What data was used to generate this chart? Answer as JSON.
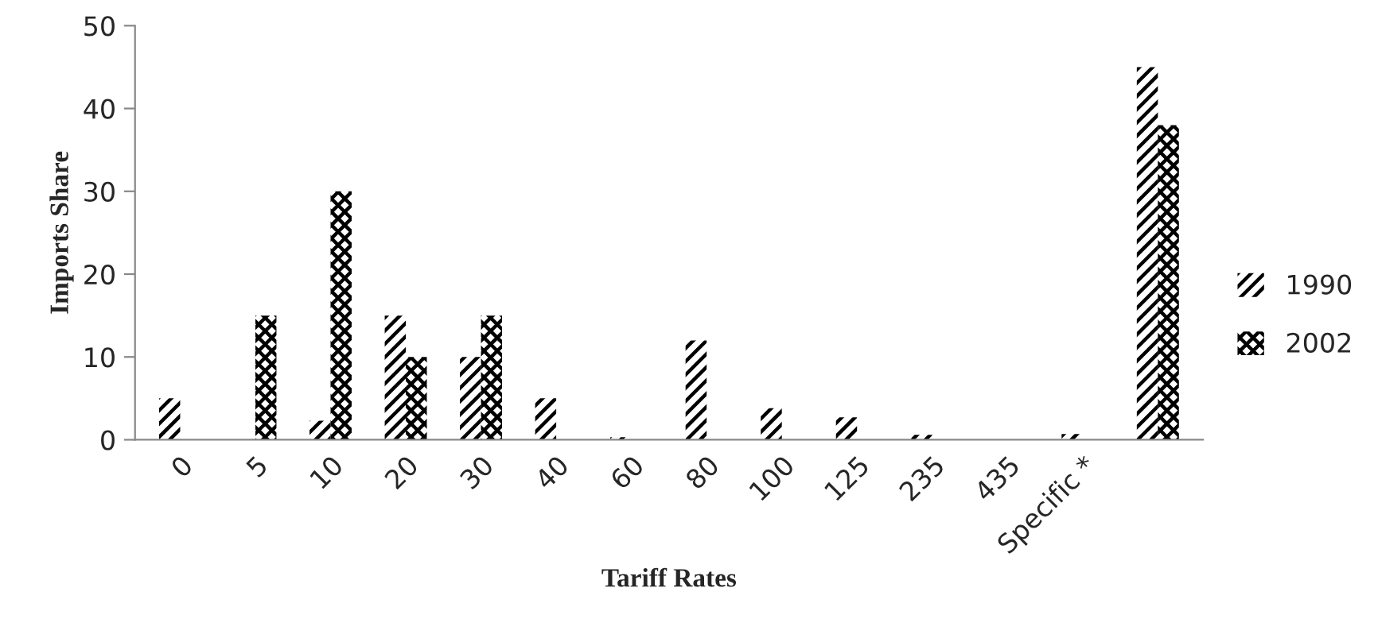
{
  "chart_data": {
    "type": "bar",
    "xlabel": "Tariff Rates",
    "ylabel": "Imports Share",
    "categories": [
      "0",
      "5",
      "10",
      "20",
      "30",
      "40",
      "60",
      "80",
      "100",
      "125",
      "235",
      "435",
      "Specific *",
      null
    ],
    "series": [
      {
        "name": "1990",
        "color": "#000000",
        "values": [
          5,
          0,
          2.3,
          15,
          10,
          5,
          0.3,
          12,
          3.8,
          2.7,
          0.6,
          0,
          0.7,
          45
        ]
      },
      {
        "name": "2002",
        "color": "#000000",
        "values": [
          0,
          15,
          30,
          10,
          15,
          0,
          0,
          0,
          0,
          0,
          0,
          0,
          0,
          38
        ]
      }
    ],
    "ylim": [
      0,
      50
    ],
    "yticks": [
      0,
      10,
      20,
      30,
      40,
      50
    ],
    "grid": false,
    "legend": "right"
  }
}
